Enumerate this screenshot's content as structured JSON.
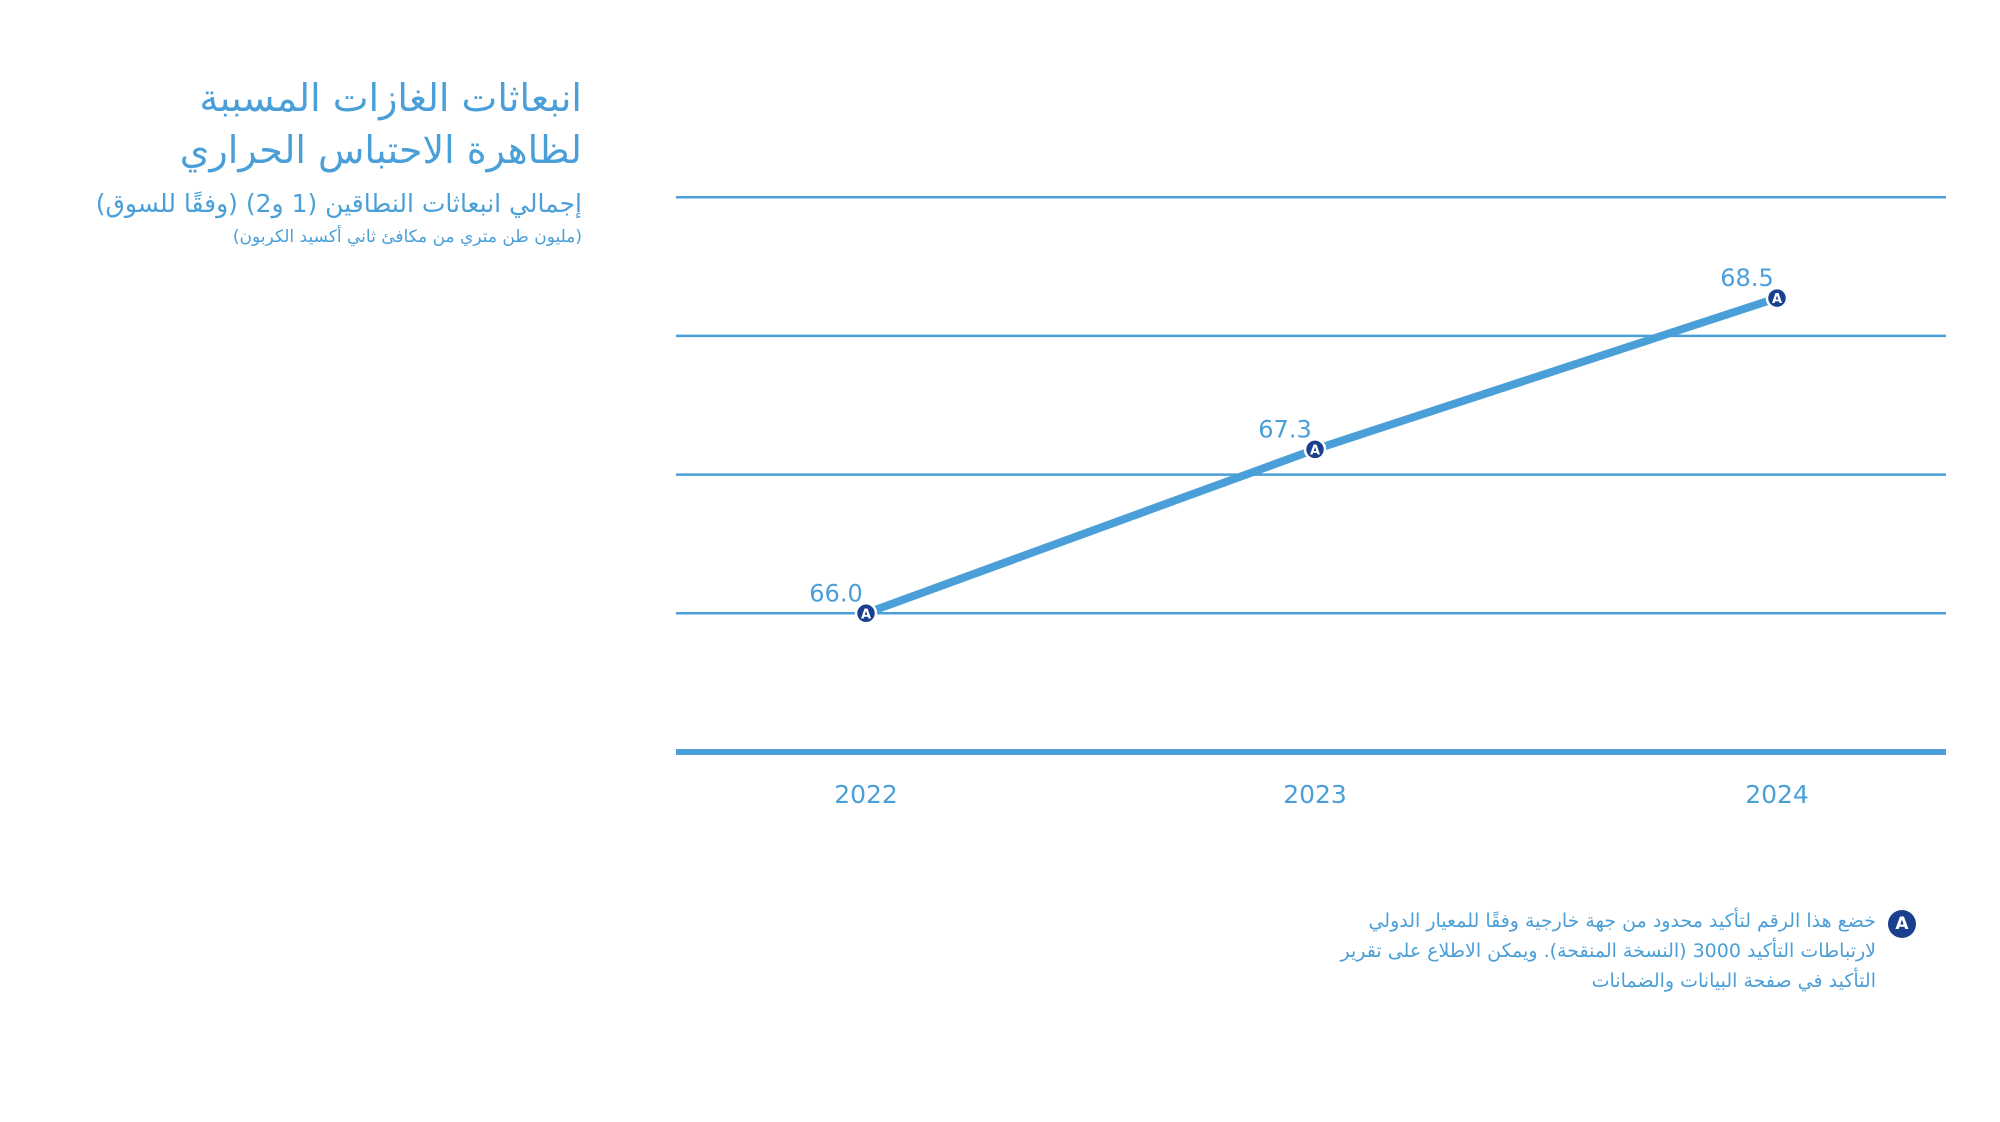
{
  "header": {
    "title_line1": "انبعاثات الغازات المسببة",
    "title_line2": "لظاهرة الاحتباس الحراري",
    "subtitle": "إجمالي انبعاثات النطاقين (1 و2) (وفقًا للسوق)",
    "unit": "(مليون طن متري من مكافئ ثاني أكسيد الكربون)"
  },
  "chart_data": {
    "type": "line",
    "title": "",
    "xlabel": "",
    "ylabel": "",
    "categories": [
      "2022",
      "2023",
      "2024"
    ],
    "series": [
      {
        "values": [
          66.0,
          67.3,
          68.5
        ],
        "labels": [
          "66.0",
          "67.3",
          "68.5"
        ]
      }
    ],
    "ylim": [
      64.9,
      69.5
    ],
    "gridlines": [
      66.0,
      67.1,
      68.2,
      69.3
    ],
    "grid": true,
    "point_marker": "A",
    "colors": {
      "line": "#4a9fd8",
      "grid": "#4a9fd8",
      "marker": "#1b3f8f",
      "text": "#4a9fd8"
    }
  },
  "footnote": {
    "badge": "A",
    "text": "خضع هذا الرقم لتأكيد محدود من جهة خارجية وفقًا للمعيار الدولي لارتباطات التأكيد 3000 (النسخة المنقحة). ويمكن الاطلاع على تقرير التأكيد في صفحة البيانات والضمانات"
  }
}
